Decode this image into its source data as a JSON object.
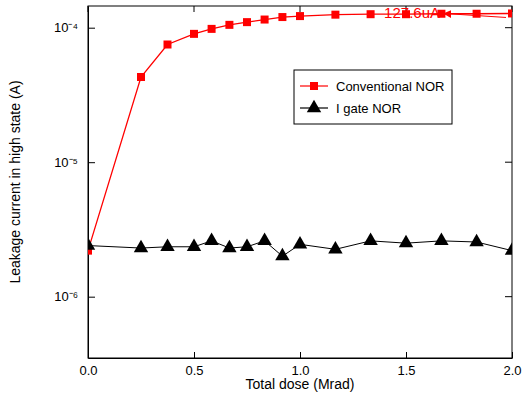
{
  "chart_data": {
    "type": "line",
    "x_label": "Total dose (Mrad)",
    "y_label": "Leakage current in high state (A)",
    "log": "y",
    "xlim": [
      0,
      2
    ],
    "xticks": [
      {
        "value": 0,
        "label": "0.0"
      },
      {
        "value": 0.5,
        "label": "0.5"
      },
      {
        "value": 1,
        "label": "1.0"
      },
      {
        "value": 1.5,
        "label": "1.5"
      },
      {
        "value": 2,
        "label": "2.0"
      }
    ],
    "ylim": [
      3.5e-07,
      0.000145
    ],
    "yticks": [
      {
        "value": 1e-06,
        "label": "10⁻⁶"
      },
      {
        "value": 1e-05,
        "label": "10⁻⁵"
      },
      {
        "value": 0.0001,
        "label": "10⁻⁴"
      }
    ],
    "legend": "upper right",
    "x": [
      0,
      0.25,
      0.375,
      0.5,
      0.583,
      0.667,
      0.75,
      0.833,
      0.917,
      1.0,
      1.167,
      1.333,
      1.5,
      1.667,
      1.833,
      2.0
    ],
    "series": [
      {
        "name": "Conventional NOR",
        "color": "#ff0000",
        "marker": "square",
        "line_style": "solid",
        "values": [
          2.2e-06,
          4.3e-05,
          7.5e-05,
          9e-05,
          9.8e-05,
          0.000105,
          0.00011,
          0.000115,
          0.00012,
          0.000122,
          0.000125,
          0.000126,
          0.000126,
          0.000127,
          0.000127,
          0.0001276
        ]
      },
      {
        "name": "I gate NOR",
        "color": "#000000",
        "marker": "triangle",
        "line_style": "solid",
        "values": [
          2.4e-06,
          2.3e-06,
          2.35e-06,
          2.35e-06,
          2.6e-06,
          2.3e-06,
          2.35e-06,
          2.6e-06,
          2e-06,
          2.45e-06,
          2.25e-06,
          2.6e-06,
          2.5e-06,
          2.6e-06,
          2.55e-06,
          2.2e-06
        ]
      }
    ],
    "annotations": [
      {
        "text": "127.6uA",
        "color": "#ff0000"
      }
    ]
  }
}
